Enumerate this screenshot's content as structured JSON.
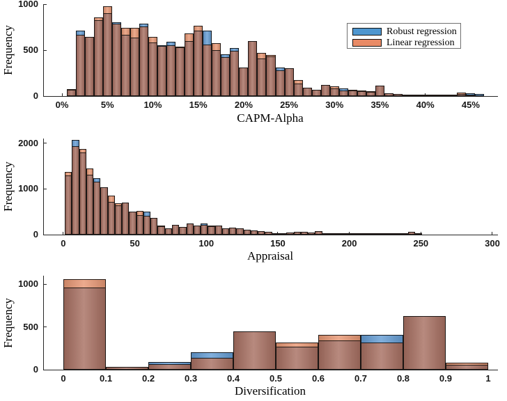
{
  "colors": {
    "robust": "#669ED5",
    "linear": "#E89875",
    "overlap": "#A87062",
    "legend_robust": "#4E96CF",
    "legend_linear": "#E98B66",
    "axis": "#262626"
  },
  "chart_data": [
    {
      "type": "bar",
      "subtype": "overlaid-histogram",
      "title": "",
      "xlabel": "CAPM-Alpha",
      "ylabel": "Frequency",
      "bin_start": 0.5,
      "bin_width": 1,
      "xlim": [
        -2,
        48
      ],
      "ylim": [
        0,
        1000
      ],
      "grid": false,
      "legend_position": "northeast",
      "x_tick_values": [
        0,
        5,
        10,
        15,
        20,
        25,
        30,
        35,
        40,
        45
      ],
      "x_tick_labels": [
        "0%",
        "5%",
        "10%",
        "15%",
        "20%",
        "25%",
        "30%",
        "35%",
        "40%",
        "45%"
      ],
      "y_tick_values": [
        0,
        500,
        1000
      ],
      "y_tick_labels": [
        "0",
        "500",
        "1000"
      ],
      "series": [
        {
          "name": "Robust regression",
          "values": [
            70,
            710,
            645,
            825,
            905,
            805,
            665,
            640,
            785,
            580,
            555,
            590,
            530,
            600,
            715,
            715,
            500,
            455,
            525,
            310,
            595,
            410,
            435,
            310,
            300,
            140,
            90,
            72,
            118,
            80,
            80,
            60,
            55,
            48,
            110,
            28,
            25,
            8,
            6,
            10,
            6,
            5,
            14,
            20,
            30,
            25
          ]
        },
        {
          "name": "Linear regression",
          "values": [
            78,
            670,
            645,
            860,
            975,
            790,
            740,
            745,
            755,
            645,
            545,
            550,
            535,
            680,
            765,
            560,
            575,
            425,
            495,
            310,
            595,
            470,
            445,
            280,
            300,
            175,
            90,
            72,
            118,
            105,
            62,
            72,
            62,
            55,
            110,
            30,
            25,
            8,
            6,
            10,
            6,
            5,
            14,
            35,
            15,
            8
          ]
        }
      ]
    },
    {
      "type": "bar",
      "subtype": "overlaid-histogram",
      "title": "",
      "xlabel": "Appraisal",
      "ylabel": "Frequency",
      "bin_start": 1,
      "bin_width": 5,
      "xlim": [
        -13.6,
        303.9
      ],
      "ylim": [
        0,
        2100
      ],
      "grid": false,
      "x_tick_values": [
        0,
        50,
        100,
        150,
        200,
        250,
        300
      ],
      "x_tick_labels": [
        "0",
        "50",
        "100",
        "150",
        "200",
        "250",
        "300"
      ],
      "y_tick_values": [
        0,
        1000,
        2000
      ],
      "y_tick_labels": [
        "0",
        "1000",
        "2000"
      ],
      "series": [
        {
          "name": "Robust regression",
          "values": [
            1300,
            2075,
            1790,
            1310,
            1235,
            1030,
            710,
            635,
            695,
            510,
            420,
            495,
            370,
            180,
            135,
            215,
            165,
            250,
            200,
            250,
            185,
            195,
            130,
            145,
            130,
            105,
            90,
            75,
            60,
            20,
            15,
            45,
            55,
            55,
            45,
            75,
            10,
            5,
            5,
            20,
            15,
            5,
            5,
            15,
            25,
            30,
            30,
            25,
            55,
            25
          ]
        },
        {
          "name": "Linear regression",
          "values": [
            1370,
            1935,
            1870,
            1440,
            1155,
            1030,
            850,
            690,
            695,
            510,
            525,
            405,
            370,
            205,
            135,
            215,
            165,
            250,
            200,
            215,
            195,
            195,
            130,
            145,
            130,
            105,
            90,
            80,
            60,
            20,
            15,
            45,
            55,
            55,
            45,
            75,
            10,
            5,
            5,
            20,
            15,
            5,
            5,
            15,
            25,
            30,
            30,
            25,
            55,
            25
          ]
        }
      ]
    },
    {
      "type": "bar",
      "subtype": "overlaid-histogram",
      "title": "",
      "xlabel": "Diversification",
      "ylabel": "Frequency",
      "bin_start": 0,
      "bin_width": 0.1,
      "xlim": [
        -0.046,
        1.023
      ],
      "ylim": [
        0,
        1100
      ],
      "grid": false,
      "x_tick_values": [
        0,
        0.1,
        0.2,
        0.3,
        0.4,
        0.5,
        0.6,
        0.7,
        0.8,
        0.9,
        1
      ],
      "x_tick_labels": [
        "0",
        "0.1",
        "0.2",
        "0.3",
        "0.4",
        "0.5",
        "0.6",
        "0.7",
        "0.8",
        "0.9",
        "1"
      ],
      "y_tick_values": [
        0,
        500,
        1000
      ],
      "y_tick_labels": [
        "0",
        "500",
        "1000"
      ],
      "series": [
        {
          "name": "Robust regression",
          "values": [
            960,
            30,
            90,
            200,
            450,
            265,
            345,
            410,
            630,
            55
          ]
        },
        {
          "name": "Linear regression",
          "values": [
            1060,
            30,
            65,
            135,
            450,
            320,
            405,
            320,
            630,
            85
          ]
        }
      ]
    }
  ]
}
